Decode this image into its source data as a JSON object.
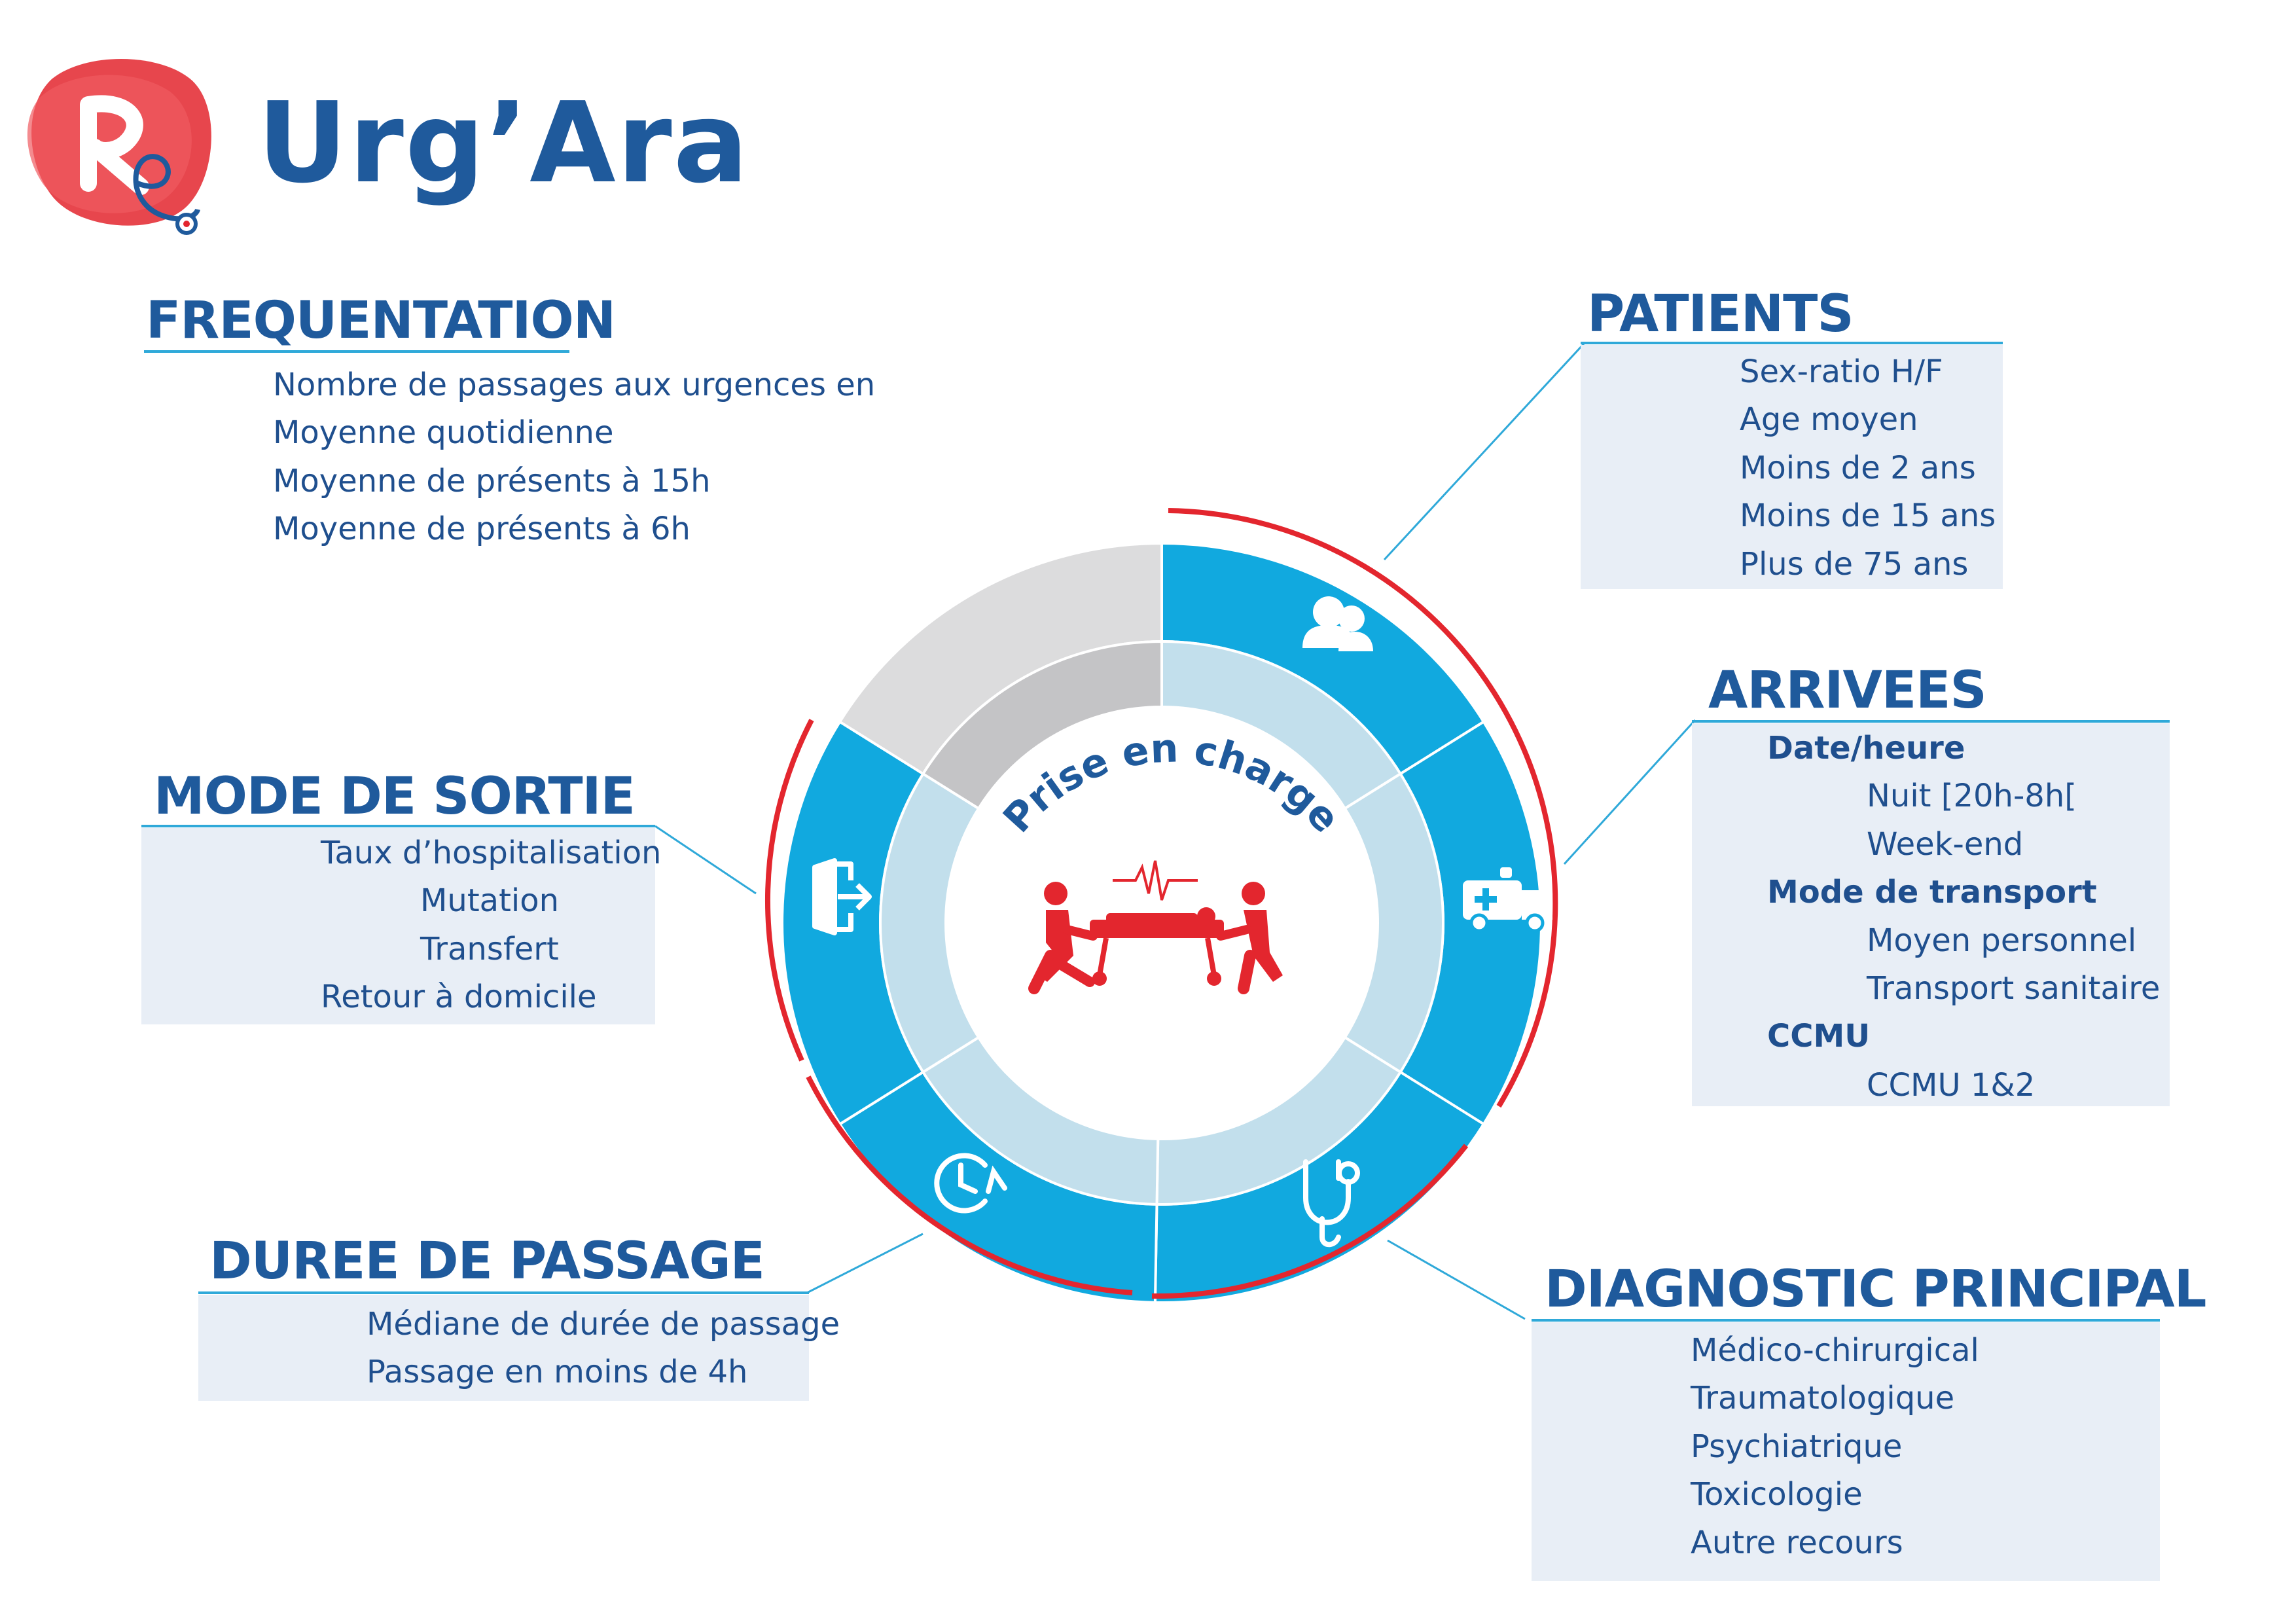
{
  "brand": {
    "name": "Urg’Ara",
    "color": "#1f5a9c",
    "logo_color": "#e3262e"
  },
  "center_label": "Prise en charge",
  "colors": {
    "ring": "#11a9df",
    "ring_inner": "#c2dfec",
    "ring_grey": "#dcdcdd",
    "ring_grey_inner": "#c4c4c6",
    "accent": "#e3262e",
    "heading": "#1f5a9c",
    "box": "#e8eef6"
  },
  "sections": {
    "frequentation": {
      "title": "FREQUENTATION",
      "items": [
        "Nombre de passages aux urgences en",
        "Moyenne quotidienne",
        "Moyenne de présents à 15h",
        "Moyenne de présents à 6h"
      ]
    },
    "patients": {
      "title": "PATIENTS",
      "items": [
        "Sex-ratio H/F",
        "Age moyen",
        "Moins de 2 ans",
        "Moins de 15 ans",
        "Plus de 75 ans"
      ]
    },
    "arrivees": {
      "title": "ARRIVEES",
      "groups": [
        {
          "label": "Date/heure",
          "items": [
            "Nuit [20h-8h[",
            "Week-end"
          ]
        },
        {
          "label": "Mode de transport",
          "items": [
            "Moyen personnel",
            "Transport sanitaire"
          ]
        },
        {
          "label": "CCMU",
          "items": [
            "CCMU 1&2"
          ]
        }
      ]
    },
    "mode_de_sortie": {
      "title": "MODE DE SORTIE",
      "items": [
        "Taux d’hospitalisation",
        "Mutation",
        "Transfert",
        "Retour à domicile"
      ]
    },
    "duree_de_passage": {
      "title": "DUREE DE PASSAGE",
      "items": [
        "Médiane de durée de passage",
        "Passage en moins de 4h"
      ]
    },
    "diagnostic_principal": {
      "title": "DIAGNOSTIC PRINCIPAL",
      "items": [
        "Médico-chirurgical",
        "Traumatologique",
        "Psychiatrique",
        "Toxicologie",
        "Autre recours"
      ]
    }
  },
  "icons": [
    "patients-icon",
    "ambulance-icon",
    "stethoscope-icon",
    "clock-icon",
    "exit-door-icon",
    "stretcher-bearers-icon",
    "heartbeat-icon"
  ]
}
